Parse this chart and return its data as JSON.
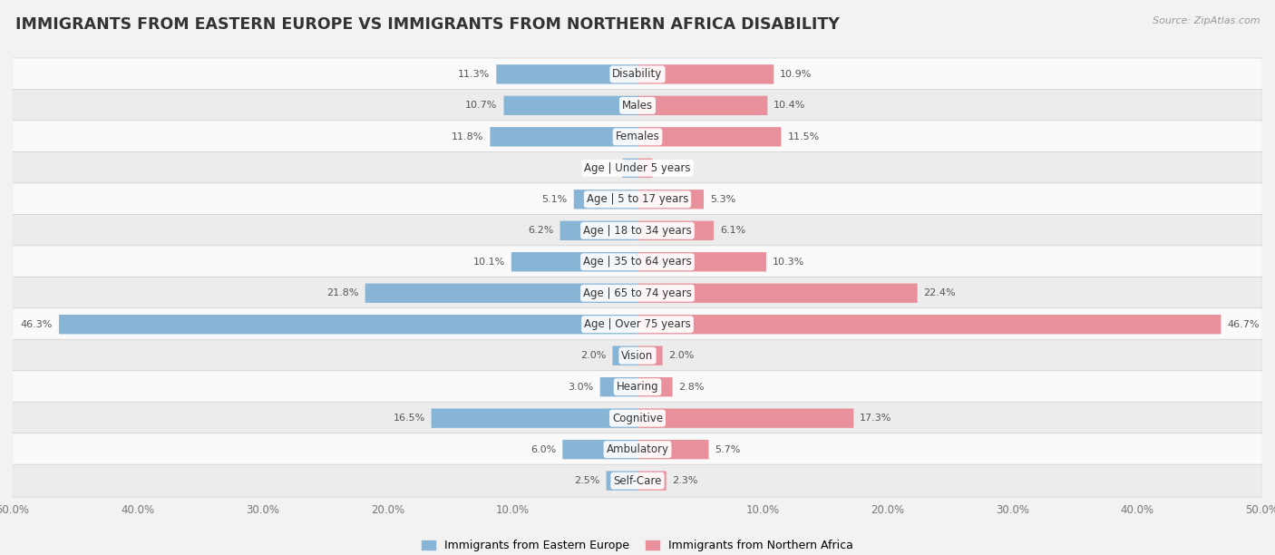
{
  "title": "IMMIGRANTS FROM EASTERN EUROPE VS IMMIGRANTS FROM NORTHERN AFRICA DISABILITY",
  "source": "Source: ZipAtlas.com",
  "categories": [
    "Disability",
    "Males",
    "Females",
    "Age | Under 5 years",
    "Age | 5 to 17 years",
    "Age | 18 to 34 years",
    "Age | 35 to 64 years",
    "Age | 65 to 74 years",
    "Age | Over 75 years",
    "Vision",
    "Hearing",
    "Cognitive",
    "Ambulatory",
    "Self-Care"
  ],
  "left_values": [
    11.3,
    10.7,
    11.8,
    1.2,
    5.1,
    6.2,
    10.1,
    21.8,
    46.3,
    2.0,
    3.0,
    16.5,
    6.0,
    2.5
  ],
  "right_values": [
    10.9,
    10.4,
    11.5,
    1.2,
    5.3,
    6.1,
    10.3,
    22.4,
    46.7,
    2.0,
    2.8,
    17.3,
    5.7,
    2.3
  ],
  "left_color": "#88b4d6",
  "right_color": "#e8909c",
  "left_label": "Immigrants from Eastern Europe",
  "right_label": "Immigrants from Northern Africa",
  "max_value": 50.0,
  "background_color": "#f2f2f2",
  "row_bg_light": "#fafafa",
  "row_bg_dark": "#ececec",
  "title_fontsize": 12.5,
  "label_fontsize": 8.5,
  "value_fontsize": 8.0,
  "axis_label_fontsize": 8.5
}
